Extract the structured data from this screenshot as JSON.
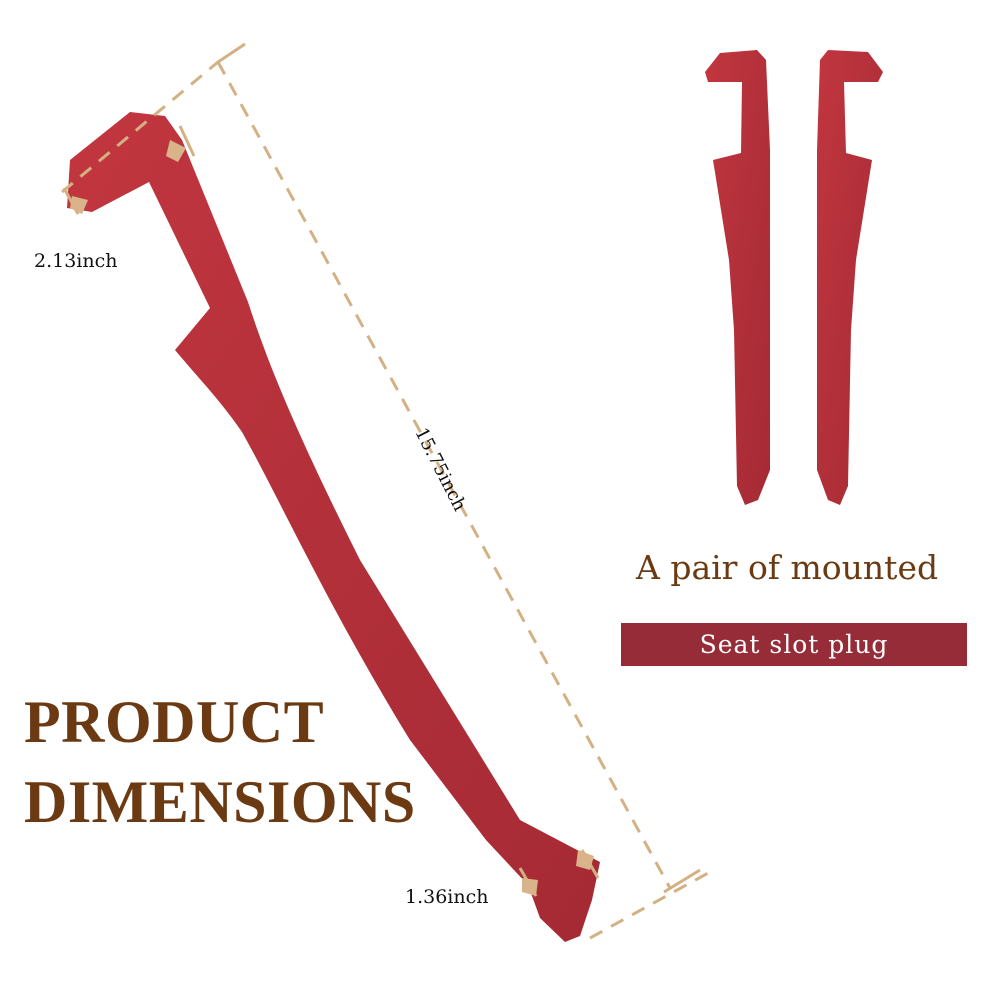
{
  "dimensions": {
    "width_label": "2.13inch",
    "length_label": "15.75inch",
    "tip_label": "1.36inch"
  },
  "headline": {
    "line1": "PRODUCT",
    "line2": "DIMENSIONS"
  },
  "caption": {
    "pair_text": "A pair of mounted",
    "tag_text": "Seat slot plug"
  },
  "colors": {
    "product_red": "#b2303a",
    "headline_brown": "#6b3a12",
    "tag_bar": "#962c38",
    "dimension_line": "#d4b184"
  }
}
